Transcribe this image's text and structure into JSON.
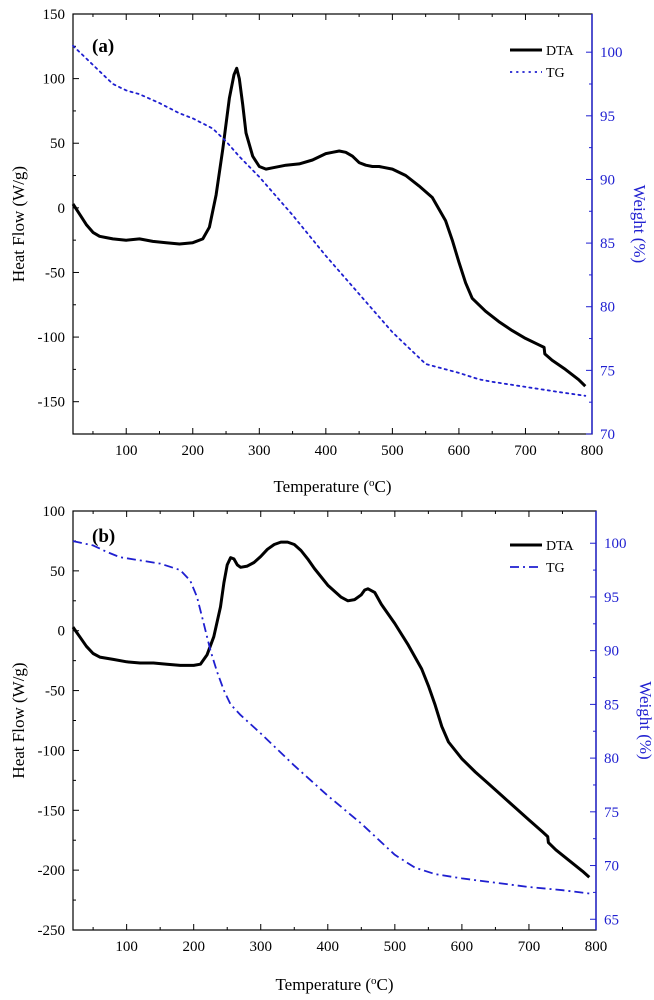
{
  "chart_data": [
    {
      "type": "line",
      "panel_label": "(a)",
      "xlabel": "Temperature (oC)",
      "xlabel_parts": {
        "pre": "Temperature (",
        "sup": "o",
        "post": "C)"
      },
      "ylabel": "Heat Flow (W/g)",
      "y2label": "Weight (%)",
      "xlim": [
        20,
        800
      ],
      "ylim": [
        -175,
        150
      ],
      "y2lim": [
        70,
        103
      ],
      "xticks": [
        100,
        200,
        300,
        400,
        500,
        600,
        700,
        800
      ],
      "yticks": [
        150,
        100,
        50,
        0,
        -50,
        -100,
        -150
      ],
      "y2ticks": [
        100,
        95,
        90,
        85,
        80,
        75,
        70
      ],
      "legend_position": "top-right",
      "colors": {
        "dta": "#000000",
        "tg": "#1f1fd0",
        "right_axis": "#1f1fd0"
      },
      "series": [
        {
          "name": "DTA",
          "axis": "left",
          "style": "solid",
          "x": [
            20,
            30,
            40,
            50,
            60,
            70,
            80,
            100,
            120,
            140,
            160,
            180,
            200,
            215,
            225,
            235,
            245,
            255,
            262,
            266,
            270,
            275,
            280,
            290,
            300,
            310,
            320,
            340,
            360,
            380,
            400,
            410,
            420,
            430,
            440,
            450,
            460,
            470,
            480,
            500,
            520,
            540,
            560,
            580,
            590,
            600,
            610,
            620,
            640,
            660,
            680,
            700,
            720,
            728,
            729,
            740,
            760,
            780,
            790
          ],
          "values": [
            3,
            -5,
            -13,
            -19,
            -22,
            -23,
            -24,
            -25,
            -24,
            -26,
            -27,
            -28,
            -27,
            -24,
            -15,
            10,
            45,
            85,
            103,
            108,
            100,
            80,
            58,
            40,
            32,
            30,
            31,
            33,
            34,
            37,
            42,
            43,
            44,
            43,
            40,
            35,
            33,
            32,
            32,
            30,
            25,
            17,
            8,
            -10,
            -25,
            -42,
            -58,
            -70,
            -80,
            -88,
            -95,
            -101,
            -106,
            -108,
            -113,
            -118,
            -125,
            -133,
            -138
          ]
        },
        {
          "name": "TG",
          "axis": "right",
          "style": "dotted",
          "x": [
            20,
            40,
            60,
            80,
            100,
            120,
            150,
            180,
            200,
            230,
            250,
            270,
            300,
            350,
            400,
            450,
            500,
            550,
            600,
            630,
            650,
            700,
            750,
            790
          ],
          "values": [
            100.5,
            99.5,
            98.5,
            97.5,
            97.0,
            96.7,
            96.0,
            95.2,
            94.8,
            94.0,
            93.0,
            91.8,
            90.2,
            87.2,
            84.0,
            81.0,
            78.0,
            75.5,
            74.8,
            74.3,
            74.1,
            73.7,
            73.3,
            73.0
          ]
        }
      ]
    },
    {
      "type": "line",
      "panel_label": "(b)",
      "xlabel": "Temperature (oC)",
      "xlabel_parts": {
        "pre": "Temperature (",
        "sup": "o",
        "post": "C)"
      },
      "ylabel": "Heat Flow (W/g)",
      "y2label": "Weight (%)",
      "xlim": [
        20,
        800
      ],
      "ylim": [
        -250,
        100
      ],
      "y2lim": [
        64,
        103
      ],
      "xticks": [
        100,
        200,
        300,
        400,
        500,
        600,
        700,
        800
      ],
      "yticks": [
        100,
        50,
        0,
        -50,
        -100,
        -150,
        -200,
        -250
      ],
      "y2ticks": [
        100,
        95,
        90,
        85,
        80,
        75,
        70,
        65
      ],
      "legend_position": "top-right",
      "colors": {
        "dta": "#000000",
        "tg": "#1f1fd0",
        "right_axis": "#1f1fd0"
      },
      "series": [
        {
          "name": "DTA",
          "axis": "left",
          "style": "solid",
          "x": [
            20,
            30,
            40,
            50,
            60,
            80,
            100,
            120,
            140,
            160,
            180,
            200,
            210,
            220,
            230,
            240,
            245,
            250,
            255,
            260,
            265,
            270,
            280,
            290,
            300,
            310,
            320,
            330,
            340,
            350,
            360,
            370,
            380,
            400,
            420,
            430,
            440,
            450,
            455,
            460,
            470,
            480,
            500,
            520,
            540,
            550,
            560,
            570,
            580,
            600,
            620,
            640,
            660,
            680,
            700,
            720,
            728,
            729,
            740,
            760,
            780,
            790
          ],
          "values": [
            3,
            -5,
            -13,
            -19,
            -22,
            -24,
            -26,
            -27,
            -27,
            -28,
            -29,
            -29,
            -28,
            -20,
            -5,
            20,
            40,
            55,
            61,
            60,
            55,
            53,
            54,
            57,
            62,
            68,
            72,
            74,
            74,
            72,
            67,
            60,
            52,
            38,
            28,
            25,
            26,
            30,
            34,
            35,
            32,
            22,
            6,
            -12,
            -32,
            -46,
            -62,
            -80,
            -93,
            -107,
            -118,
            -128,
            -138,
            -148,
            -158,
            -168,
            -172,
            -177,
            -183,
            -192,
            -201,
            -206
          ]
        },
        {
          "name": "TG",
          "axis": "right",
          "style": "dashdot",
          "x": [
            20,
            50,
            70,
            90,
            120,
            150,
            180,
            195,
            205,
            215,
            225,
            235,
            245,
            255,
            270,
            300,
            350,
            400,
            450,
            500,
            530,
            560,
            600,
            650,
            700,
            750,
            790
          ],
          "values": [
            100.2,
            99.8,
            99.2,
            98.7,
            98.4,
            98.1,
            97.5,
            96.5,
            95.0,
            92.5,
            90.0,
            88.0,
            86.3,
            85.0,
            84.0,
            82.3,
            79.3,
            76.5,
            73.9,
            71.0,
            69.8,
            69.2,
            68.8,
            68.4,
            68.0,
            67.7,
            67.4
          ]
        }
      ]
    }
  ]
}
